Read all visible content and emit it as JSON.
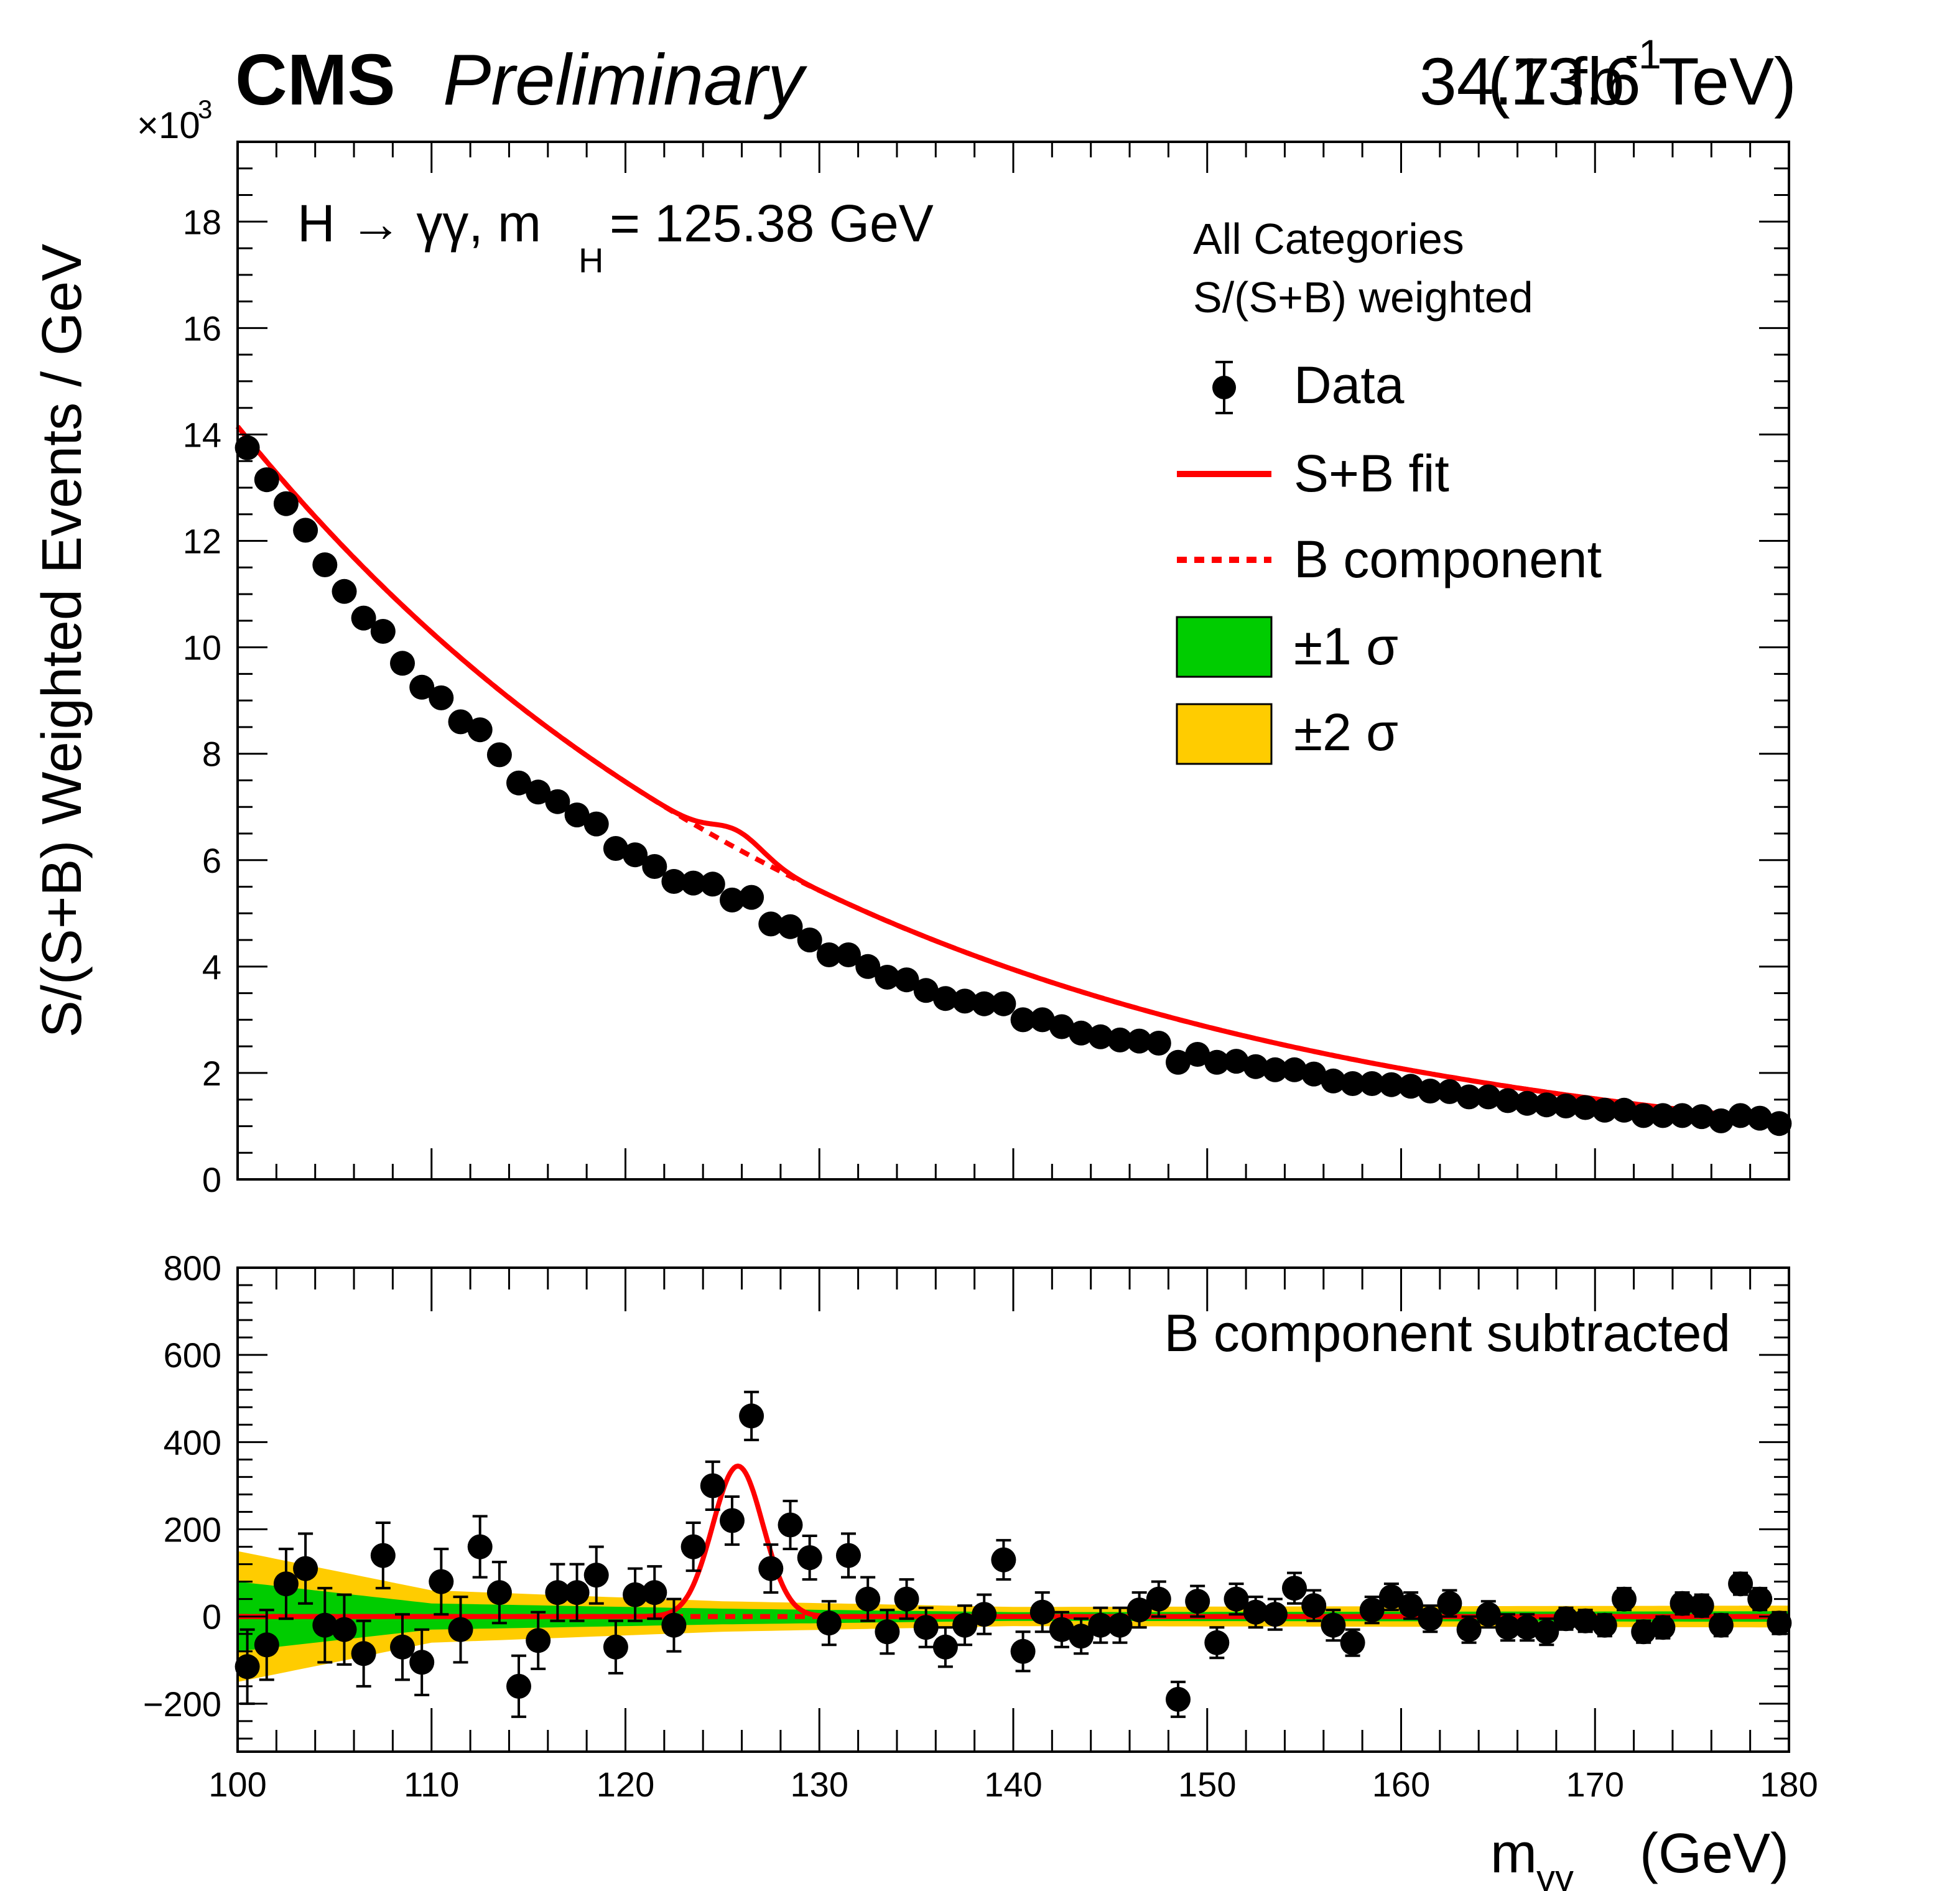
{
  "header": {
    "experiment": "CMS",
    "status": "Preliminary",
    "lumi": "34.7 fb",
    "lumi_exp": "-1",
    "energy": "(13.6 TeV)"
  },
  "process": {
    "prefix": "H → γγ, m",
    "sub": "H",
    "suffix": " = 125.38 GeV"
  },
  "legend": {
    "header1": "All Categories",
    "header2": "S/(S+B) weighted",
    "items": [
      {
        "label": "Data",
        "kind": "marker"
      },
      {
        "label": "S+B fit",
        "kind": "solid",
        "color": "#ff0000"
      },
      {
        "label": "B component",
        "kind": "dashed",
        "color": "#ff0000"
      },
      {
        "label": "±1 σ",
        "kind": "band",
        "color": "#00cc00"
      },
      {
        "label": "±2 σ",
        "kind": "band",
        "color": "#ffcc00"
      }
    ]
  },
  "lower_note": "B component subtracted",
  "colors": {
    "fit": "#ff0000",
    "band1": "#00cc00",
    "band2": "#ffcc00",
    "data": "#000000"
  },
  "chart_data": [
    {
      "type": "scatter",
      "panel": "upper",
      "ylabel": "S/(S+B) Weighted Events / GeV",
      "yscale_label": "×10",
      "yscale_exp": "3",
      "xlim": [
        100,
        180
      ],
      "ylim": [
        0,
        19.5
      ],
      "yunit": "thousands",
      "yticks": [
        0,
        2,
        4,
        6,
        8,
        10,
        12,
        14,
        16,
        18
      ],
      "fit": {
        "A": 14.15,
        "B_at_180": 1.1,
        "signal_peak": 0.34,
        "mean": 125.8,
        "sigma": 1.3
      },
      "series": [
        {
          "name": "Data",
          "x": [
            100.5,
            101.5,
            102.5,
            103.5,
            104.5,
            105.5,
            106.5,
            107.5,
            108.5,
            109.5,
            110.5,
            111.5,
            112.5,
            113.5,
            114.5,
            115.5,
            116.5,
            117.5,
            118.5,
            119.5,
            120.5,
            121.5,
            122.5,
            123.5,
            124.5,
            125.5,
            126.5,
            127.5,
            128.5,
            129.5,
            130.5,
            131.5,
            132.5,
            133.5,
            134.5,
            135.5,
            136.5,
            137.5,
            138.5,
            139.5,
            140.5,
            141.5,
            142.5,
            143.5,
            144.5,
            145.5,
            146.5,
            147.5,
            148.5,
            149.5,
            150.5,
            151.5,
            152.5,
            153.5,
            154.5,
            155.5,
            156.5,
            157.5,
            158.5,
            159.5,
            160.5,
            161.5,
            162.5,
            163.5,
            164.5,
            165.5,
            166.5,
            167.5,
            168.5,
            169.5,
            170.5,
            171.5,
            172.5,
            173.5,
            174.5,
            175.5,
            176.5,
            177.5,
            178.5,
            179.5
          ],
          "y": [
            13.75,
            13.15,
            12.7,
            12.2,
            11.55,
            11.05,
            10.55,
            10.3,
            9.7,
            9.25,
            9.05,
            8.6,
            8.45,
            7.98,
            7.45,
            7.28,
            7.1,
            6.85,
            6.68,
            6.22,
            6.1,
            5.88,
            5.6,
            5.57,
            5.55,
            5.25,
            5.3,
            4.8,
            4.75,
            4.5,
            4.22,
            4.22,
            4.0,
            3.8,
            3.75,
            3.55,
            3.4,
            3.35,
            3.3,
            3.3,
            3.0,
            3.0,
            2.87,
            2.75,
            2.68,
            2.62,
            2.6,
            2.56,
            2.2,
            2.35,
            2.2,
            2.22,
            2.12,
            2.06,
            2.06,
            1.98,
            1.85,
            1.8,
            1.8,
            1.78,
            1.75,
            1.66,
            1.65,
            1.55,
            1.55,
            1.48,
            1.43,
            1.4,
            1.38,
            1.35,
            1.3,
            1.3,
            1.2,
            1.2,
            1.2,
            1.18,
            1.1,
            1.2,
            1.15,
            1.05
          ]
        }
      ]
    },
    {
      "type": "scatter",
      "panel": "lower",
      "xlabel": "m",
      "xlabel_sub": "γγ",
      "xlabel_unit": " (GeV)",
      "xlim": [
        100,
        180
      ],
      "ylim": [
        -310,
        800
      ],
      "xticks": [
        100,
        110,
        120,
        130,
        140,
        150,
        160,
        170,
        180
      ],
      "yticks": [
        -200,
        0,
        200,
        400,
        600,
        800
      ],
      "ytick_labels": [
        "−200",
        "0",
        "200",
        "400",
        "600",
        "800"
      ],
      "signal": {
        "peak": 345,
        "mean": 125.8,
        "sigma": 1.3
      },
      "band1_halfwidth": {
        "at100": 80,
        "at110": 30,
        "at125": 18,
        "at140": 10,
        "at180": 12
      },
      "band2_halfwidth": {
        "at100": 150,
        "at110": 60,
        "at125": 35,
        "at140": 22,
        "at180": 25
      },
      "series": [
        {
          "name": "Data",
          "x": [
            100.5,
            101.5,
            102.5,
            103.5,
            104.5,
            105.5,
            106.5,
            107.5,
            108.5,
            109.5,
            110.5,
            111.5,
            112.5,
            113.5,
            114.5,
            115.5,
            116.5,
            117.5,
            118.5,
            119.5,
            120.5,
            121.5,
            122.5,
            123.5,
            124.5,
            125.5,
            126.5,
            127.5,
            128.5,
            129.5,
            130.5,
            131.5,
            132.5,
            133.5,
            134.5,
            135.5,
            136.5,
            137.5,
            138.5,
            139.5,
            140.5,
            141.5,
            142.5,
            143.5,
            144.5,
            145.5,
            146.5,
            147.5,
            148.5,
            149.5,
            150.5,
            151.5,
            152.5,
            153.5,
            154.5,
            155.5,
            156.5,
            157.5,
            158.5,
            159.5,
            160.5,
            161.5,
            162.5,
            163.5,
            164.5,
            165.5,
            166.5,
            167.5,
            168.5,
            169.5,
            170.5,
            171.5,
            172.5,
            173.5,
            174.5,
            175.5,
            176.5,
            177.5,
            178.5,
            179.5
          ],
          "y": [
            -115,
            -65,
            75,
            110,
            -20,
            -30,
            -85,
            140,
            -70,
            -105,
            80,
            -30,
            160,
            55,
            -160,
            -55,
            55,
            55,
            95,
            -70,
            50,
            55,
            -20,
            160,
            300,
            220,
            460,
            110,
            210,
            135,
            -15,
            140,
            40,
            -35,
            40,
            -25,
            -70,
            -20,
            5,
            130,
            -80,
            10,
            -30,
            -45,
            -20,
            -20,
            15,
            40,
            -190,
            35,
            -60,
            40,
            10,
            5,
            65,
            25,
            -20,
            -60,
            15,
            45,
            25,
            -5,
            30,
            -30,
            5,
            -25,
            -25,
            -35,
            -5,
            -10,
            -20,
            40,
            -35,
            -25,
            30,
            25,
            -20,
            75,
            40,
            -15
          ],
          "err": [
            85,
            80,
            80,
            80,
            85,
            80,
            75,
            75,
            75,
            75,
            75,
            75,
            70,
            70,
            70,
            65,
            65,
            65,
            65,
            60,
            60,
            60,
            60,
            55,
            55,
            55,
            55,
            55,
            55,
            50,
            50,
            50,
            50,
            50,
            45,
            45,
            45,
            45,
            45,
            45,
            45,
            45,
            40,
            40,
            40,
            40,
            40,
            40,
            40,
            35,
            35,
            35,
            35,
            35,
            35,
            35,
            35,
            30,
            30,
            30,
            30,
            30,
            30,
            30,
            30,
            30,
            30,
            30,
            25,
            25,
            25,
            25,
            25,
            25,
            25,
            25,
            25,
            25,
            25,
            25
          ]
        }
      ]
    }
  ]
}
